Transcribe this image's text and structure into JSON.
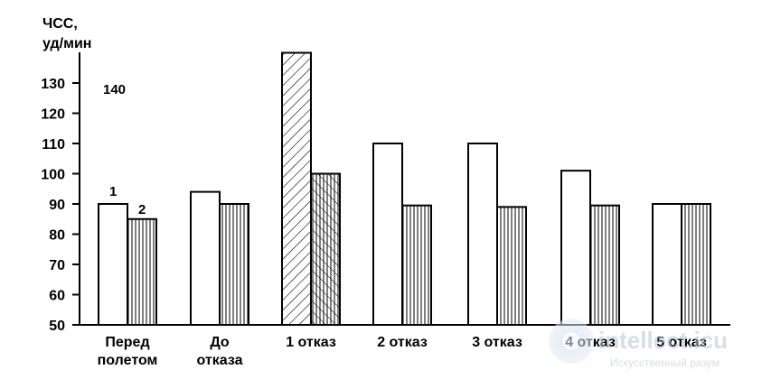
{
  "chart_data": {
    "type": "bar",
    "ylabel_line1": "ЧСС,",
    "ylabel_line2": "уд/мин",
    "ylim": [
      50,
      140
    ],
    "yticks": [
      50,
      60,
      70,
      80,
      90,
      100,
      110,
      120,
      130
    ],
    "extra_label": "140",
    "categories": [
      [
        "Перед",
        "полетом"
      ],
      [
        "До",
        "отказа"
      ],
      [
        "1  отказ"
      ],
      [
        "2  отказ"
      ],
      [
        "3  отказ"
      ],
      [
        "4  отказ"
      ],
      [
        "5  отказ"
      ]
    ],
    "series": [
      {
        "name": "1",
        "pattern": "open",
        "values": [
          90,
          94,
          140,
          110,
          110,
          101,
          90
        ]
      },
      {
        "name": "2",
        "pattern": "vertical-lines",
        "values": [
          85,
          90,
          100,
          89.5,
          89,
          89.5,
          90
        ]
      }
    ],
    "highlight": {
      "category_index": 2,
      "series_index": 0,
      "pattern": "diagonal-lines"
    },
    "highlight_overlay": {
      "category_index": 2,
      "series_index": 1,
      "pattern": "cross-hatch"
    }
  },
  "watermark": {
    "logo_text": "intellect.icu",
    "subtitle": "Искусственный разум"
  }
}
